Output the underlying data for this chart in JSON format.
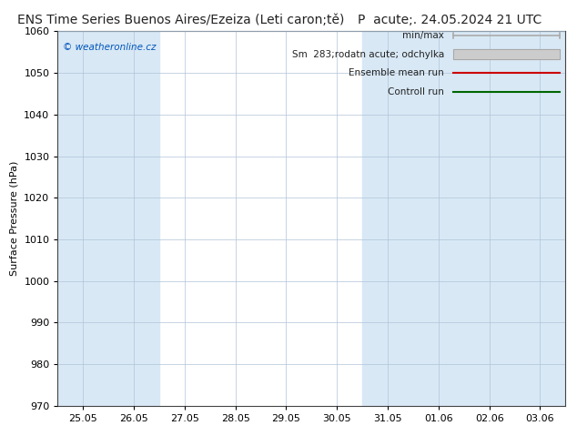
{
  "title_left": "ENS Time Series Buenos Aires/Ezeiza (Leti caron;tě)",
  "title_right": "P  acute;. 24.05.2024 21 UTC",
  "ylabel": "Surface Pressure (hPa)",
  "ylim": [
    970,
    1060
  ],
  "yticks": [
    970,
    980,
    990,
    1000,
    1010,
    1020,
    1030,
    1040,
    1050,
    1060
  ],
  "xtick_labels": [
    "25.05",
    "26.05",
    "27.05",
    "28.05",
    "29.05",
    "30.05",
    "31.05",
    "01.06",
    "02.06",
    "03.06"
  ],
  "bg_color": "#ffffff",
  "plot_bg_color": "#ffffff",
  "shaded_band_color": "#d8e8f5",
  "watermark": "© weatheronline.cz",
  "shaded_columns": [
    0,
    1,
    6,
    7,
    8,
    9
  ],
  "grid_color": "#cccccc",
  "title_fontsize": 10,
  "tick_fontsize": 8,
  "ylabel_fontsize": 8,
  "legend_min_max_color": "#aaaaaa",
  "legend_sm_color": "#cccccc",
  "legend_ensemble_color": "#cc0000",
  "legend_control_color": "#006600"
}
